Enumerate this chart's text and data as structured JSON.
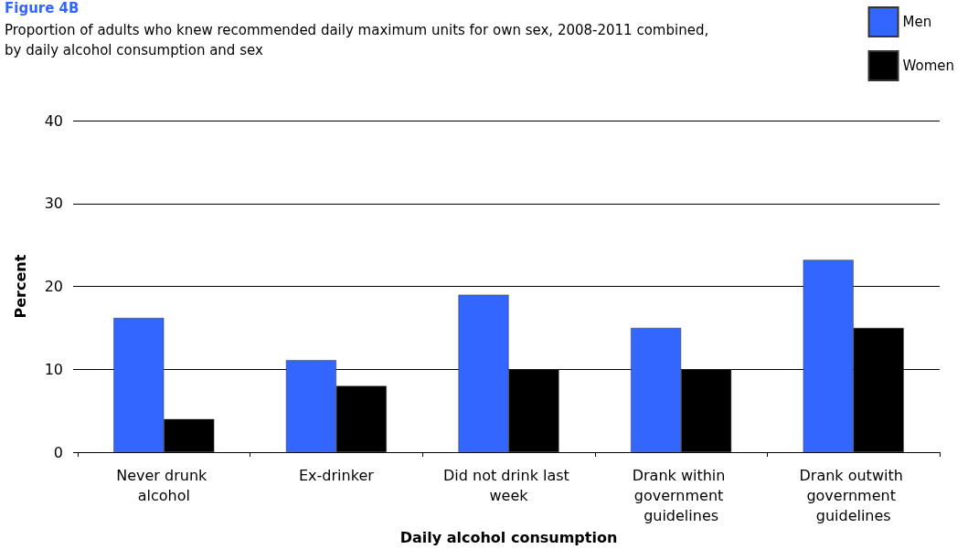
{
  "chart_data": {
    "type": "bar",
    "title": "Figure 4B",
    "subtitle": "Proportion of adults who knew recommended daily maximum units for own sex, 2008-2011 combined, by daily alcohol consumption and sex",
    "xlabel": "Daily alcohol consumption",
    "ylabel": "Percent",
    "categories": [
      "Never drunk alcohol",
      "Ex-drinker",
      "Did not drink last week",
      "Drank within government guidelines",
      "Drank outwith government guidelines"
    ],
    "series": [
      {
        "name": "Men",
        "color": "#3366ff",
        "values": [
          16.2,
          11.1,
          19,
          15,
          23.2
        ]
      },
      {
        "name": "Women",
        "color": "#000000",
        "values": [
          4,
          8,
          10,
          10,
          15
        ]
      }
    ],
    "ylim": [
      0,
      40
    ],
    "yticks": [
      0,
      10,
      20,
      30,
      40
    ],
    "grid": "y",
    "legend": "top right"
  }
}
